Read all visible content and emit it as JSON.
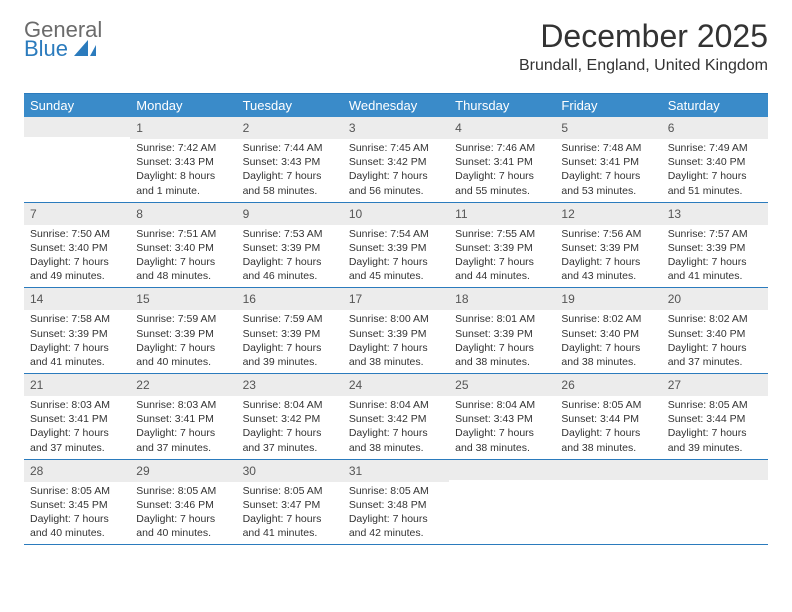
{
  "logo": {
    "word1": "General",
    "word2": "Blue"
  },
  "title": "December 2025",
  "location": "Brundall, England, United Kingdom",
  "colors": {
    "header_bg": "#3a8bc9",
    "border": "#2b7bbd",
    "daynum_bg": "#ececec",
    "text": "#333333",
    "logo_gray": "#6b6b6b",
    "logo_blue": "#2b7bbd"
  },
  "day_names": [
    "Sunday",
    "Monday",
    "Tuesday",
    "Wednesday",
    "Thursday",
    "Friday",
    "Saturday"
  ],
  "weeks": [
    [
      {
        "n": "",
        "sunrise": "",
        "sunset": "",
        "daylight": ""
      },
      {
        "n": "1",
        "sunrise": "7:42 AM",
        "sunset": "3:43 PM",
        "daylight": "8 hours and 1 minute."
      },
      {
        "n": "2",
        "sunrise": "7:44 AM",
        "sunset": "3:43 PM",
        "daylight": "7 hours and 58 minutes."
      },
      {
        "n": "3",
        "sunrise": "7:45 AM",
        "sunset": "3:42 PM",
        "daylight": "7 hours and 56 minutes."
      },
      {
        "n": "4",
        "sunrise": "7:46 AM",
        "sunset": "3:41 PM",
        "daylight": "7 hours and 55 minutes."
      },
      {
        "n": "5",
        "sunrise": "7:48 AM",
        "sunset": "3:41 PM",
        "daylight": "7 hours and 53 minutes."
      },
      {
        "n": "6",
        "sunrise": "7:49 AM",
        "sunset": "3:40 PM",
        "daylight": "7 hours and 51 minutes."
      }
    ],
    [
      {
        "n": "7",
        "sunrise": "7:50 AM",
        "sunset": "3:40 PM",
        "daylight": "7 hours and 49 minutes."
      },
      {
        "n": "8",
        "sunrise": "7:51 AM",
        "sunset": "3:40 PM",
        "daylight": "7 hours and 48 minutes."
      },
      {
        "n": "9",
        "sunrise": "7:53 AM",
        "sunset": "3:39 PM",
        "daylight": "7 hours and 46 minutes."
      },
      {
        "n": "10",
        "sunrise": "7:54 AM",
        "sunset": "3:39 PM",
        "daylight": "7 hours and 45 minutes."
      },
      {
        "n": "11",
        "sunrise": "7:55 AM",
        "sunset": "3:39 PM",
        "daylight": "7 hours and 44 minutes."
      },
      {
        "n": "12",
        "sunrise": "7:56 AM",
        "sunset": "3:39 PM",
        "daylight": "7 hours and 43 minutes."
      },
      {
        "n": "13",
        "sunrise": "7:57 AM",
        "sunset": "3:39 PM",
        "daylight": "7 hours and 41 minutes."
      }
    ],
    [
      {
        "n": "14",
        "sunrise": "7:58 AM",
        "sunset": "3:39 PM",
        "daylight": "7 hours and 41 minutes."
      },
      {
        "n": "15",
        "sunrise": "7:59 AM",
        "sunset": "3:39 PM",
        "daylight": "7 hours and 40 minutes."
      },
      {
        "n": "16",
        "sunrise": "7:59 AM",
        "sunset": "3:39 PM",
        "daylight": "7 hours and 39 minutes."
      },
      {
        "n": "17",
        "sunrise": "8:00 AM",
        "sunset": "3:39 PM",
        "daylight": "7 hours and 38 minutes."
      },
      {
        "n": "18",
        "sunrise": "8:01 AM",
        "sunset": "3:39 PM",
        "daylight": "7 hours and 38 minutes."
      },
      {
        "n": "19",
        "sunrise": "8:02 AM",
        "sunset": "3:40 PM",
        "daylight": "7 hours and 38 minutes."
      },
      {
        "n": "20",
        "sunrise": "8:02 AM",
        "sunset": "3:40 PM",
        "daylight": "7 hours and 37 minutes."
      }
    ],
    [
      {
        "n": "21",
        "sunrise": "8:03 AM",
        "sunset": "3:41 PM",
        "daylight": "7 hours and 37 minutes."
      },
      {
        "n": "22",
        "sunrise": "8:03 AM",
        "sunset": "3:41 PM",
        "daylight": "7 hours and 37 minutes."
      },
      {
        "n": "23",
        "sunrise": "8:04 AM",
        "sunset": "3:42 PM",
        "daylight": "7 hours and 37 minutes."
      },
      {
        "n": "24",
        "sunrise": "8:04 AM",
        "sunset": "3:42 PM",
        "daylight": "7 hours and 38 minutes."
      },
      {
        "n": "25",
        "sunrise": "8:04 AM",
        "sunset": "3:43 PM",
        "daylight": "7 hours and 38 minutes."
      },
      {
        "n": "26",
        "sunrise": "8:05 AM",
        "sunset": "3:44 PM",
        "daylight": "7 hours and 38 minutes."
      },
      {
        "n": "27",
        "sunrise": "8:05 AM",
        "sunset": "3:44 PM",
        "daylight": "7 hours and 39 minutes."
      }
    ],
    [
      {
        "n": "28",
        "sunrise": "8:05 AM",
        "sunset": "3:45 PM",
        "daylight": "7 hours and 40 minutes."
      },
      {
        "n": "29",
        "sunrise": "8:05 AM",
        "sunset": "3:46 PM",
        "daylight": "7 hours and 40 minutes."
      },
      {
        "n": "30",
        "sunrise": "8:05 AM",
        "sunset": "3:47 PM",
        "daylight": "7 hours and 41 minutes."
      },
      {
        "n": "31",
        "sunrise": "8:05 AM",
        "sunset": "3:48 PM",
        "daylight": "7 hours and 42 minutes."
      },
      {
        "n": "",
        "sunrise": "",
        "sunset": "",
        "daylight": ""
      },
      {
        "n": "",
        "sunrise": "",
        "sunset": "",
        "daylight": ""
      },
      {
        "n": "",
        "sunrise": "",
        "sunset": "",
        "daylight": ""
      }
    ]
  ],
  "labels": {
    "sunrise": "Sunrise:",
    "sunset": "Sunset:",
    "daylight": "Daylight:"
  }
}
